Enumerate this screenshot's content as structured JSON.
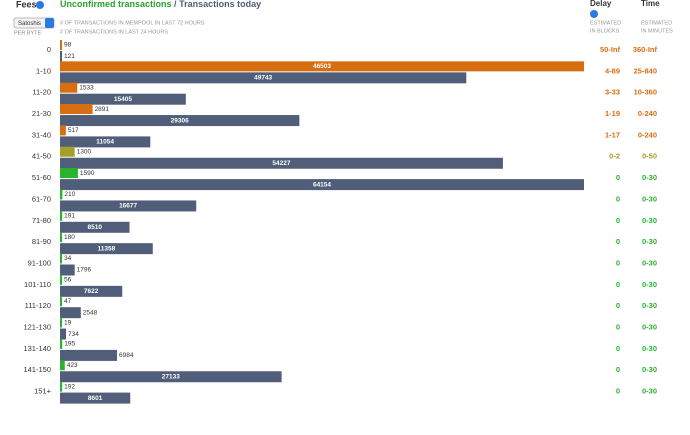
{
  "header": {
    "fees": "Fees",
    "unit": "Satoshis",
    "per_byte": "PER BYTE",
    "unconfirmed": "Unconfirmed transactions",
    "slash": "/",
    "today": "Transactions today",
    "caption1": "# OF TRANSACTIONS IN MEMPOOL IN LAST 72 HOURS",
    "caption2": "# OF TRANSACTIONS IN LAST 24 HOURS",
    "delay": "Delay",
    "delay_caption1": "ESTIMATED",
    "delay_caption2": "IN BLOCKS",
    "time": "Time",
    "time_caption1": "ESTIMATED",
    "time_caption2": "IN MINUTES"
  },
  "rows": [
    {
      "fee": "0",
      "unconfirmed": 98,
      "today": 121,
      "delay": "50-Inf",
      "time": "360-Inf",
      "color": "#d86e12"
    },
    {
      "fee": "1-10",
      "unconfirmed": 46503,
      "today": 49743,
      "delay": "4-89",
      "time": "25-840",
      "color": "#d86e12"
    },
    {
      "fee": "11-20",
      "unconfirmed": 1533,
      "today": 15405,
      "delay": "3-33",
      "time": "10-360",
      "color": "#d86e12"
    },
    {
      "fee": "21-30",
      "unconfirmed": 2891,
      "today": 29306,
      "delay": "1-19",
      "time": "0-240",
      "color": "#d86e12"
    },
    {
      "fee": "31-40",
      "unconfirmed": 517,
      "today": 11054,
      "delay": "1-17",
      "time": "0-240",
      "color": "#d86e12"
    },
    {
      "fee": "41-50",
      "unconfirmed": 1300,
      "today": 54227,
      "delay": "0-2",
      "time": "0-50",
      "color": "#a3a02a"
    },
    {
      "fee": "51-60",
      "unconfirmed": 1590,
      "today": 64154,
      "delay": "0",
      "time": "0-30",
      "color": "#27b32e"
    },
    {
      "fee": "61-70",
      "unconfirmed": 210,
      "today": 16677,
      "delay": "0",
      "time": "0-30",
      "color": "#27b32e"
    },
    {
      "fee": "71-80",
      "unconfirmed": 191,
      "today": 8510,
      "delay": "0",
      "time": "0-30",
      "color": "#27b32e"
    },
    {
      "fee": "81-90",
      "unconfirmed": 180,
      "today": 11358,
      "delay": "0",
      "time": "0-30",
      "color": "#27b32e"
    },
    {
      "fee": "91-100",
      "unconfirmed": 34,
      "today": 1796,
      "delay": "0",
      "time": "0-30",
      "color": "#27b32e"
    },
    {
      "fee": "101-110",
      "unconfirmed": 56,
      "today": 7622,
      "delay": "0",
      "time": "0-30",
      "color": "#27b32e"
    },
    {
      "fee": "111-120",
      "unconfirmed": 47,
      "today": 2548,
      "delay": "0",
      "time": "0-30",
      "color": "#27b32e"
    },
    {
      "fee": "121-130",
      "unconfirmed": 19,
      "today": 734,
      "delay": "0",
      "time": "0-30",
      "color": "#27b32e"
    },
    {
      "fee": "131-140",
      "unconfirmed": 195,
      "today": 6984,
      "delay": "0",
      "time": "0-30",
      "color": "#27b32e"
    },
    {
      "fee": "141-150",
      "unconfirmed": 423,
      "today": 27133,
      "delay": "0",
      "time": "0-30",
      "color": "#27b32e"
    },
    {
      "fee": "151+",
      "unconfirmed": 192,
      "today": 8601,
      "delay": "0",
      "time": "0-30",
      "color": "#27b32e"
    }
  ],
  "today_color": "#515e7a"
}
